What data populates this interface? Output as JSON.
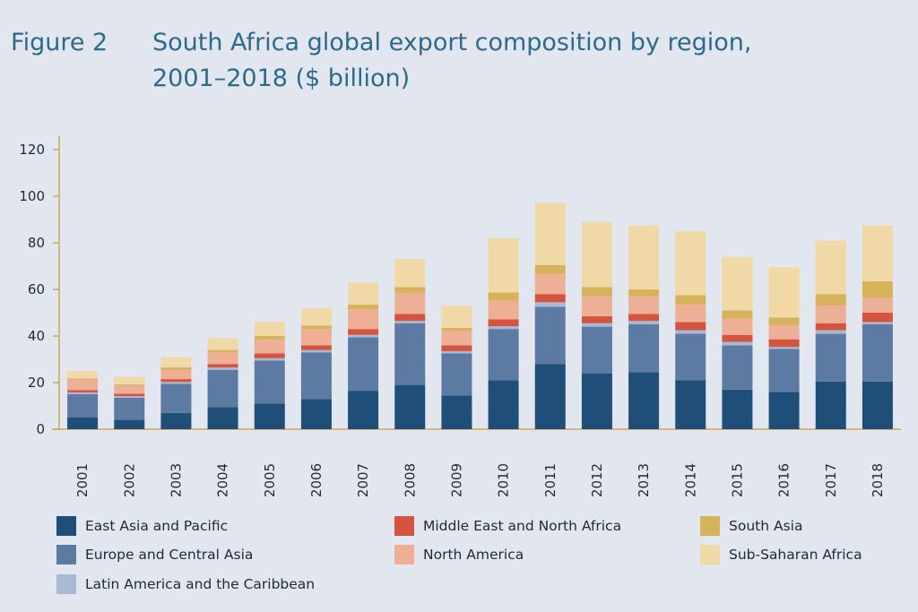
{
  "header": {
    "figure_label": "Figure 2",
    "title_line1": "South Africa global export composition by region,",
    "title_line2": "2001–2018 ($ billion)"
  },
  "chart_data": {
    "type": "bar",
    "stacked": true,
    "title": "South Africa global export composition by region, 2001–2018 ($ billion)",
    "xlabel": "",
    "ylabel": "",
    "ylim": [
      0,
      120
    ],
    "yticks": [
      0,
      20,
      40,
      60,
      80,
      100,
      120
    ],
    "grid": false,
    "legend_position": "bottom",
    "categories": [
      "2001",
      "2002",
      "2003",
      "2004",
      "2005",
      "2006",
      "2007",
      "2008",
      "2009",
      "2010",
      "2011",
      "2012",
      "2013",
      "2014",
      "2015",
      "2016",
      "2017",
      "2018"
    ],
    "series": [
      {
        "name": "East Asia and Pacific",
        "color": "#1f4e79",
        "values": [
          5,
          4,
          7,
          9.5,
          11,
          13,
          16.5,
          19,
          14.5,
          21,
          28,
          24,
          24.5,
          21,
          17,
          16,
          20.5,
          20.5
        ]
      },
      {
        "name": "Europe and Central Asia",
        "color": "#5d7aa3",
        "values": [
          10,
          9.5,
          12.5,
          16,
          18.5,
          20,
          23,
          26.5,
          18,
          22,
          24.5,
          20,
          20.5,
          20,
          19,
          18.5,
          20.5,
          24.5
        ]
      },
      {
        "name": "Latin America and the Caribbean",
        "color": "#a9b8d3",
        "values": [
          0.8,
          0.7,
          0.8,
          1,
          1,
          1,
          1,
          1,
          1,
          1.2,
          2,
          1.5,
          1.5,
          1.5,
          1.5,
          0.8,
          1.5,
          1
        ]
      },
      {
        "name": "Middle East and North Africa",
        "color": "#d55440",
        "values": [
          1,
          1,
          1.2,
          1.5,
          2,
          2,
          2.5,
          3,
          2.5,
          3,
          3.5,
          3,
          3,
          3.5,
          3,
          3.3,
          3,
          4
        ]
      },
      {
        "name": "North America",
        "color": "#eeaf97",
        "values": [
          4.5,
          3.5,
          4,
          5,
          6,
          7,
          8.5,
          9,
          6,
          8,
          8.5,
          8.5,
          7.5,
          7.5,
          7,
          6.2,
          7.5,
          6.5
        ]
      },
      {
        "name": "South Asia",
        "color": "#d6b25b",
        "values": [
          0.5,
          0.5,
          1,
          1,
          1.5,
          1.5,
          2,
          2.5,
          1.5,
          3.5,
          4,
          4,
          3,
          4,
          3.5,
          3.2,
          5,
          7
        ]
      },
      {
        "name": "Sub-Saharan Africa",
        "color": "#f1d9a7",
        "values": [
          3.2,
          3.3,
          4.5,
          5,
          6,
          7.5,
          9.5,
          12,
          9.5,
          23.3,
          26.5,
          28,
          27.5,
          27.5,
          23,
          21.5,
          23,
          24
        ]
      }
    ]
  }
}
